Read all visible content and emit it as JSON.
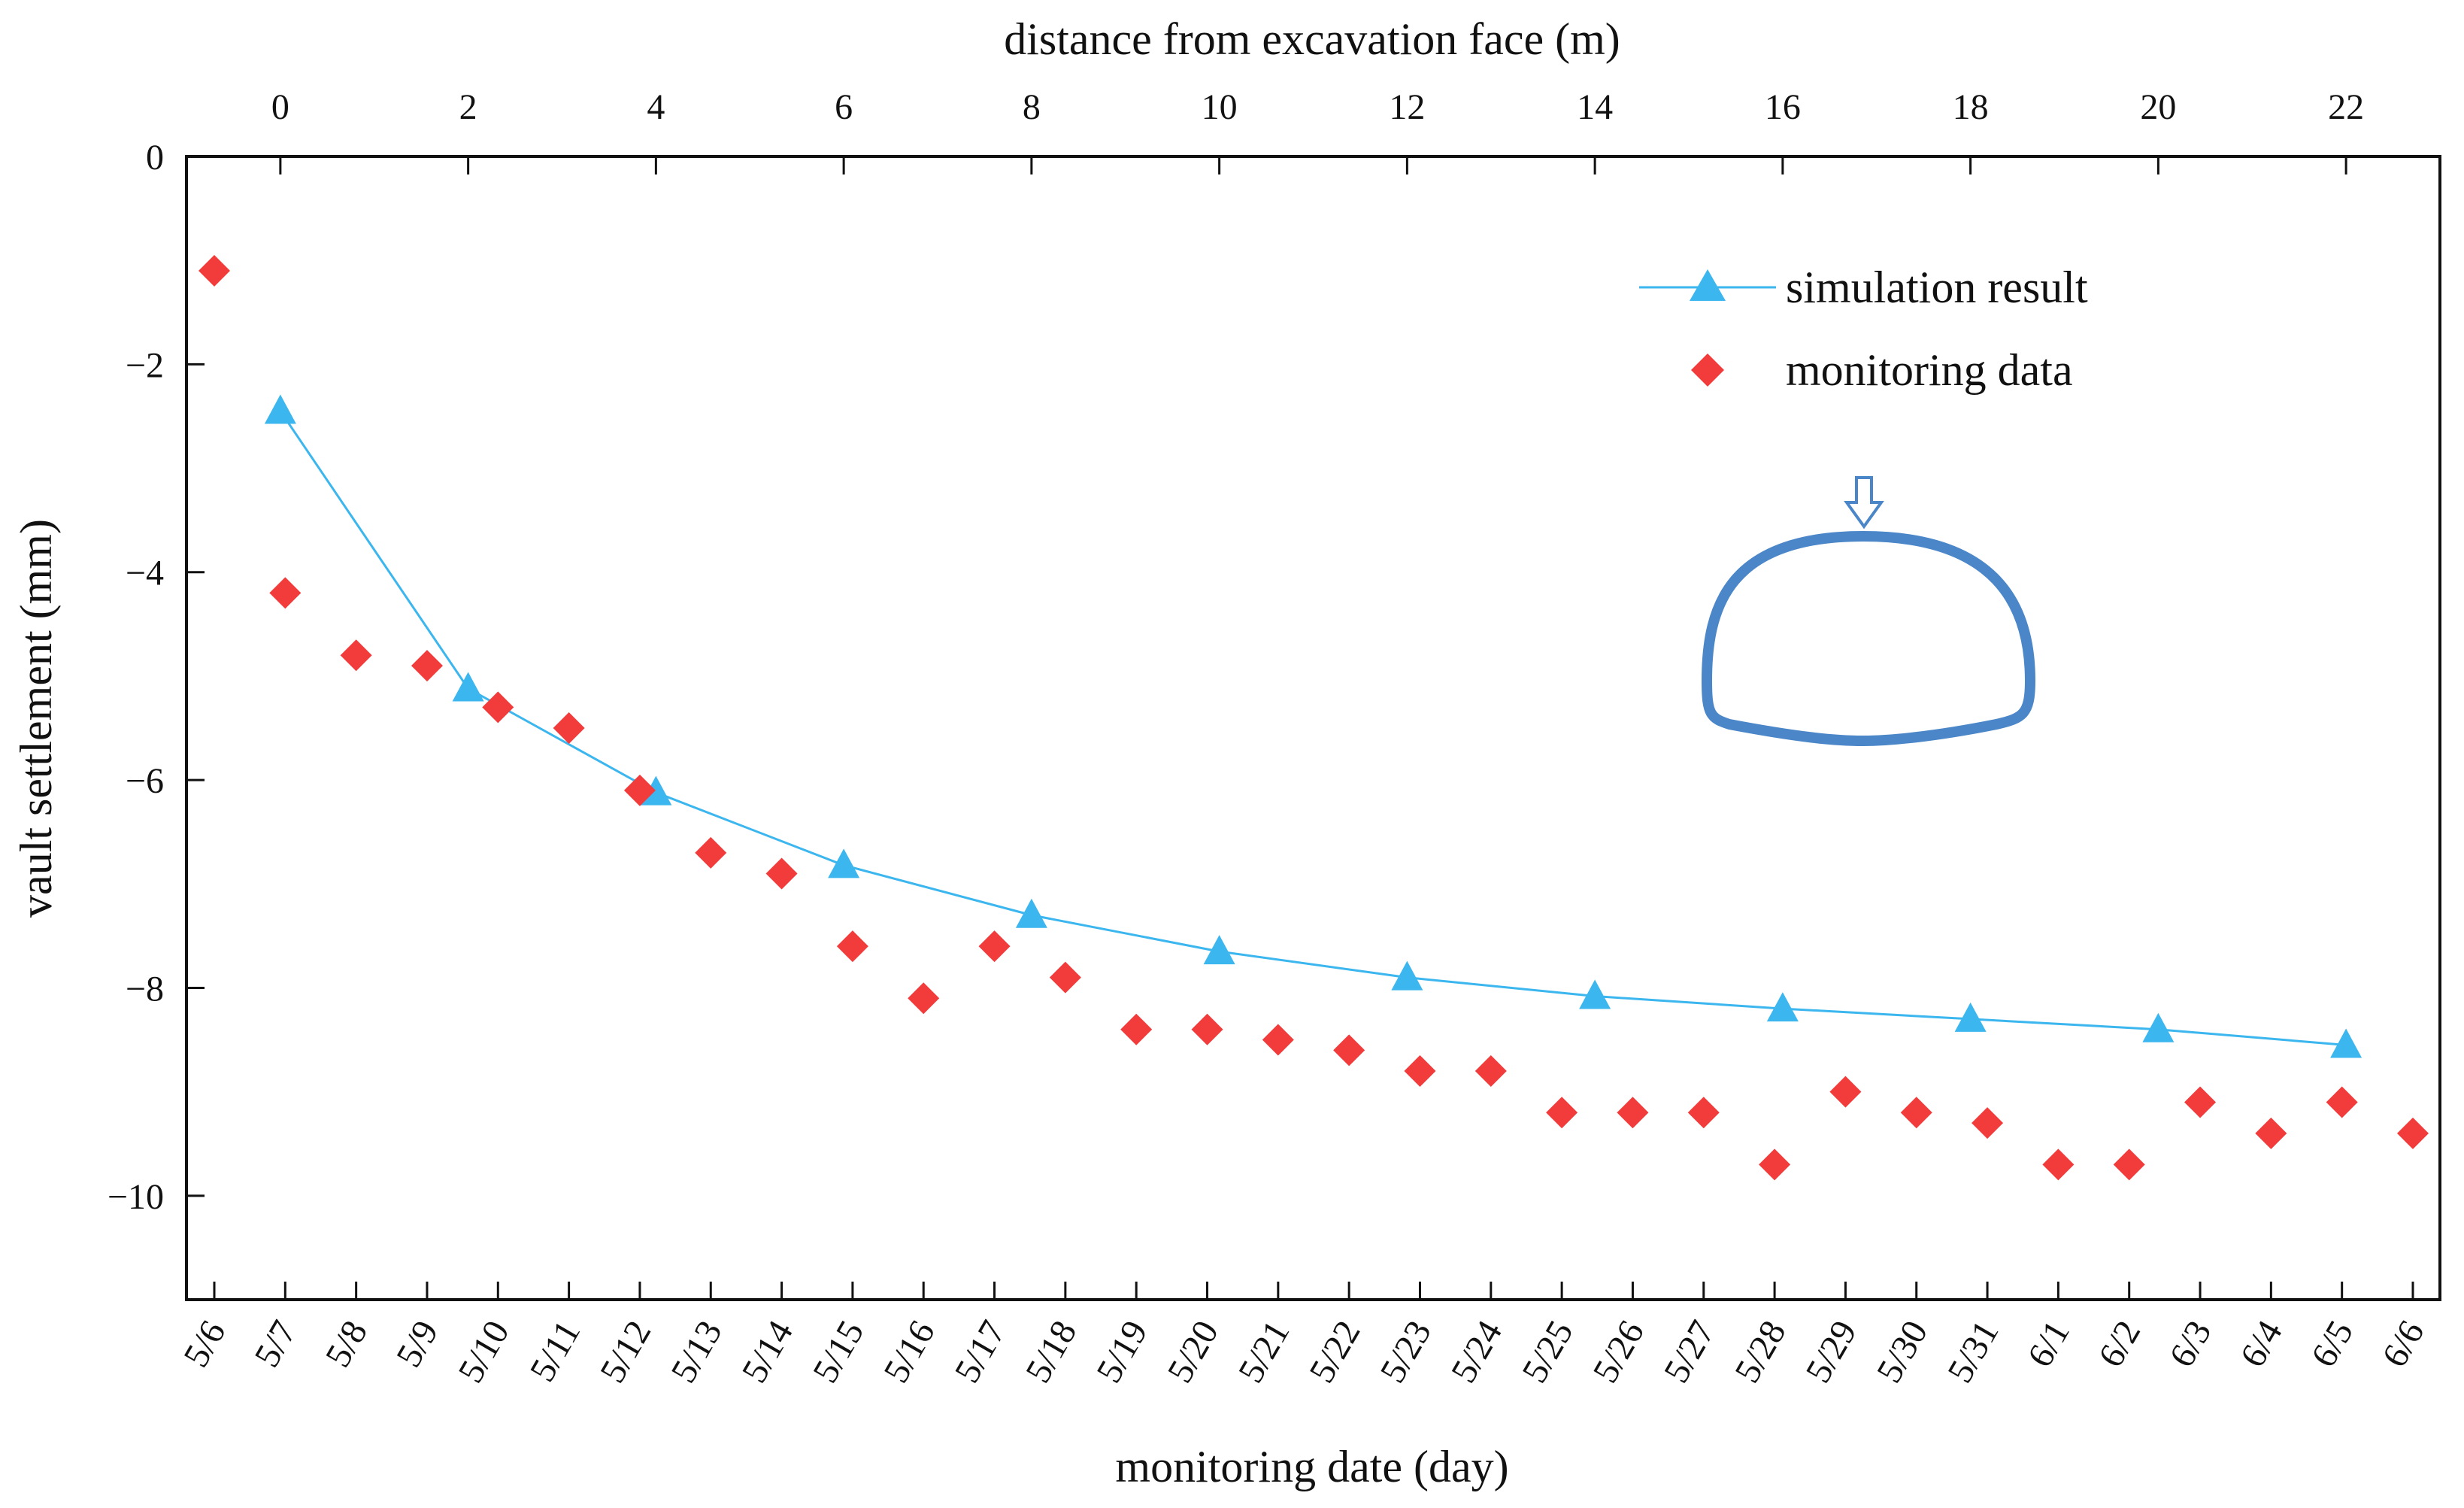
{
  "chart_data": {
    "type": "line",
    "x_axis_top": {
      "label": "distance from excavation face (m)",
      "range": [
        -1,
        23
      ],
      "ticks": [
        0,
        2,
        4,
        6,
        8,
        10,
        12,
        14,
        16,
        18,
        20,
        22
      ]
    },
    "x_axis_bottom": {
      "label": "monitoring date (day)",
      "categories": [
        "5/6",
        "5/7",
        "5/8",
        "5/9",
        "5/10",
        "5/11",
        "5/12",
        "5/13",
        "5/14",
        "5/15",
        "5/16",
        "5/17",
        "5/18",
        "5/19",
        "5/20",
        "5/21",
        "5/22",
        "5/23",
        "5/24",
        "5/25",
        "5/26",
        "5/27",
        "5/28",
        "5/29",
        "5/30",
        "5/31",
        "6/1",
        "6/2",
        "6/3",
        "6/4",
        "6/5",
        "6/6"
      ]
    },
    "y_axis": {
      "label": "vault settlement (mm)",
      "range": [
        -11,
        0
      ],
      "ticks": [
        0,
        -2,
        -4,
        -6,
        -8,
        -10
      ]
    },
    "series": [
      {
        "name": "simulation result",
        "axis": "top",
        "marker": "triangle",
        "color": "#3bb6ee",
        "x": [
          0,
          2,
          4,
          6,
          8,
          10,
          12,
          14,
          16,
          18,
          20,
          22
        ],
        "y": [
          -2.45,
          -5.12,
          -6.12,
          -6.82,
          -7.3,
          -7.65,
          -7.9,
          -8.08,
          -8.2,
          -8.3,
          -8.4,
          -8.55
        ]
      },
      {
        "name": "monitoring data",
        "axis": "bottom",
        "marker": "diamond",
        "color": "#f23b3b",
        "x": [
          "5/6",
          "5/7",
          "5/8",
          "5/9",
          "5/10",
          "5/11",
          "5/12",
          "5/13",
          "5/14",
          "5/15",
          "5/16",
          "5/17",
          "5/18",
          "5/19",
          "5/20",
          "5/21",
          "5/22",
          "5/23",
          "5/24",
          "5/25",
          "5/26",
          "5/27",
          "5/28",
          "5/29",
          "5/30",
          "5/31",
          "6/1",
          "6/2",
          "6/3",
          "6/4",
          "6/5",
          "6/6"
        ],
        "y": [
          -1.1,
          -4.2,
          -4.8,
          -4.9,
          -5.3,
          -5.5,
          -6.1,
          -6.7,
          -6.9,
          -7.6,
          -8.1,
          -7.6,
          -7.9,
          -8.4,
          -8.4,
          -8.5,
          -8.6,
          -8.8,
          -8.8,
          -9.2,
          -9.2,
          -9.2,
          -9.7,
          -9.0,
          -9.2,
          -9.3,
          -9.7,
          -9.7,
          -9.1,
          -9.4,
          -9.1,
          -9.4
        ]
      }
    ],
    "legend": {
      "placement": "top-right"
    },
    "grid": false,
    "inset_icon": "tunnel-cross-section-with-down-arrow",
    "inset_color": "#4a86c8"
  }
}
